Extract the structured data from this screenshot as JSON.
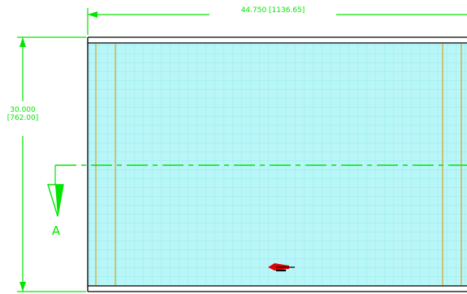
{
  "dimensions": {
    "width_label": "44.750 [1136.65]",
    "height_label_line1": "30.000",
    "height_label_line2": "[762.00]"
  },
  "section": {
    "label": "A"
  },
  "colors": {
    "dimension": "#00e600",
    "panel_fill": "#b8f6f8",
    "grid": "#8ee8ec",
    "frame": "#000000",
    "stiffener": "#d2b24a",
    "marker": "#e00000"
  },
  "icons": {
    "section_arrow": "triangle-down-icon",
    "marker": "red-marker-icon"
  }
}
